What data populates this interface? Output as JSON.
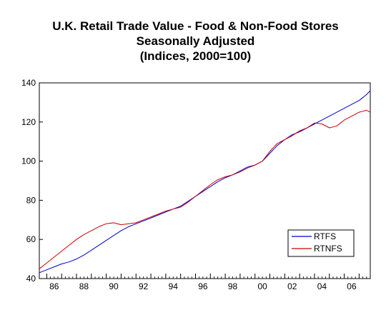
{
  "chart_data": {
    "type": "line",
    "title": [
      "U.K. Retail Trade Value - Food & Non-Food Stores",
      "Seasonally Adjusted",
      "(Indices, 2000=100)"
    ],
    "xlabel": "",
    "ylabel": "",
    "xlim": [
      1985.5,
      2007.75
    ],
    "ylim": [
      40,
      140
    ],
    "y_ticks": [
      40,
      60,
      80,
      100,
      120,
      140
    ],
    "x_ticks": [
      1986,
      1988,
      1990,
      1992,
      1994,
      1996,
      1998,
      2000,
      2002,
      2004,
      2006
    ],
    "x_tick_labels": [
      "86",
      "88",
      "90",
      "92",
      "94",
      "96",
      "98",
      "00",
      "02",
      "04",
      "06"
    ],
    "grid": false,
    "legend": "bottom-right",
    "series": [
      {
        "name": "RTFS",
        "color": "#0000cc",
        "x": [
          1985.5,
          1986.0,
          1986.5,
          1987.0,
          1987.5,
          1988.0,
          1988.5,
          1989.0,
          1989.5,
          1990.0,
          1990.5,
          1991.0,
          1991.5,
          1992.0,
          1992.5,
          1993.0,
          1993.5,
          1994.0,
          1994.5,
          1995.0,
          1995.5,
          1996.0,
          1996.5,
          1997.0,
          1997.5,
          1998.0,
          1998.5,
          1999.0,
          1999.5,
          2000.0,
          2000.5,
          2001.0,
          2001.5,
          2002.0,
          2002.5,
          2003.0,
          2003.5,
          2004.0,
          2004.5,
          2005.0,
          2005.5,
          2006.0,
          2006.5,
          2007.0,
          2007.5,
          2007.75
        ],
        "y": [
          43.0,
          44.5,
          46.0,
          47.5,
          48.5,
          50.0,
          52.0,
          54.5,
          57.0,
          59.5,
          62.0,
          64.5,
          66.5,
          68.0,
          69.5,
          71.0,
          72.5,
          74.0,
          75.5,
          77.0,
          79.5,
          82.0,
          84.5,
          87.0,
          89.5,
          91.5,
          93.0,
          95.0,
          97.0,
          98.0,
          100.0,
          104.0,
          108.0,
          111.0,
          113.5,
          115.0,
          117.0,
          119.0,
          121.0,
          123.0,
          125.0,
          127.0,
          129.0,
          131.0,
          134.0,
          136.0
        ]
      },
      {
        "name": "RTNFS",
        "color": "#cc0000",
        "x": [
          1985.5,
          1986.0,
          1986.5,
          1987.0,
          1987.5,
          1988.0,
          1988.5,
          1989.0,
          1989.5,
          1990.0,
          1990.5,
          1991.0,
          1991.5,
          1992.0,
          1992.5,
          1993.0,
          1993.5,
          1994.0,
          1994.5,
          1995.0,
          1995.5,
          1996.0,
          1996.5,
          1997.0,
          1997.5,
          1998.0,
          1998.5,
          1999.0,
          1999.5,
          2000.0,
          2000.5,
          2001.0,
          2001.5,
          2002.0,
          2002.5,
          2003.0,
          2003.5,
          2004.0,
          2004.5,
          2005.0,
          2005.5,
          2006.0,
          2006.5,
          2007.0,
          2007.5,
          2007.75
        ],
        "y": [
          45.0,
          48.0,
          51.0,
          54.0,
          57.0,
          60.0,
          62.5,
          64.5,
          66.5,
          68.0,
          68.5,
          67.5,
          68.0,
          68.5,
          70.0,
          71.5,
          73.0,
          74.5,
          75.5,
          76.5,
          79.0,
          82.0,
          85.0,
          88.0,
          90.5,
          92.0,
          93.0,
          94.5,
          96.5,
          98.0,
          100.0,
          105.0,
          109.0,
          111.0,
          113.0,
          115.5,
          117.0,
          119.5,
          119.0,
          117.0,
          118.0,
          121.0,
          123.0,
          125.0,
          126.0,
          125.0
        ]
      }
    ]
  }
}
